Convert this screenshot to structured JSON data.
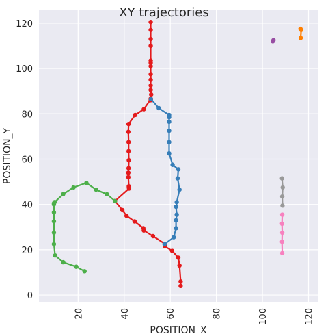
{
  "chart_data": {
    "type": "line",
    "title": "XY trajectories",
    "xlabel": "POSITION_X",
    "ylabel": "POSITION_Y",
    "xlim": [
      3,
      124
    ],
    "ylim": [
      -3,
      126
    ],
    "x_ticks": [
      20,
      40,
      60,
      80,
      100,
      120
    ],
    "y_ticks": [
      0,
      20,
      40,
      60,
      80,
      100,
      120
    ],
    "grid": true,
    "legend": "none",
    "background": "#eaeaf2",
    "series": [
      {
        "color": "#e41a1c",
        "x": [
          51.5,
          51.5,
          51.5,
          51.5,
          51.5,
          51.5,
          51.5,
          51.5,
          51.5,
          51.5,
          51.5,
          51.7,
          51.5,
          51.5,
          51.5,
          51.5,
          51.6,
          48.5,
          44.8,
          41.9,
          41.8,
          41.9,
          41.9,
          42.0,
          41.9,
          41.8,
          41.8,
          42.0,
          42.0,
          42.1,
          36.0,
          39.2,
          41.0,
          44.5,
          48.3,
          48.5,
          52.5,
          57.8,
          57.7,
          60.8,
          63.5,
          64.0,
          64.5,
          64.5
        ],
        "y": [
          120.5,
          117.0,
          113.0,
          110.0,
          103.5,
          102.5,
          101.0,
          97.5,
          95.0,
          92.5,
          90.5,
          88.5,
          86.5,
          86.0,
          86.5,
          86.7,
          86.5,
          82.0,
          79.5,
          75.5,
          72.0,
          67.5,
          63.5,
          59.5,
          56.0,
          54.0,
          52.0,
          48.0,
          47.5,
          47.0,
          41.5,
          37.5,
          35.0,
          32.5,
          29.5,
          28.5,
          26.0,
          22.5,
          21.5,
          19.5,
          16.5,
          13.0,
          6.0,
          4.0
        ]
      },
      {
        "color": "#377eb8",
        "x": [
          51.6,
          55.0,
          59.5,
          59.5,
          59.5,
          59.5,
          59.5,
          59.5,
          61.0,
          63.5,
          63.2,
          64.0,
          62.8,
          62.5,
          62.8,
          62.5,
          62.5,
          61.5,
          57.5
        ],
        "y": [
          86.5,
          82.5,
          79.5,
          78.5,
          76.5,
          72.5,
          67.5,
          62.5,
          57.5,
          55.5,
          51.5,
          46.5,
          41.0,
          39.0,
          35.5,
          33.0,
          29.5,
          25.5,
          22.5
        ]
      },
      {
        "color": "#4daf4a",
        "x": [
          22.8,
          19.2,
          13.5,
          10.0,
          9.5,
          9.5,
          9.5,
          9.5,
          9.5,
          9.5,
          9.8,
          13.5,
          18.0,
          23.6,
          27.8,
          32.5,
          36.0
        ],
        "y": [
          10.5,
          12.5,
          14.5,
          17.5,
          22.5,
          27.5,
          32.5,
          36.5,
          40.0,
          40.5,
          41.0,
          44.5,
          47.5,
          49.5,
          46.5,
          44.5,
          41.5
        ]
      },
      {
        "color": "#984ea3",
        "x": [
          104.5,
          104.8
        ],
        "y": [
          112.0,
          112.5
        ]
      },
      {
        "color": "#ff7f00",
        "x": [
          116.5,
          116.8,
          116.6
        ],
        "y": [
          117.5,
          117.0,
          113.5
        ]
      },
      {
        "color": "#999999",
        "x": [
          108.5,
          108.8,
          108.6,
          108.7
        ],
        "y": [
          51.5,
          47.5,
          43.5,
          39.5
        ]
      },
      {
        "color": "#f781bf",
        "x": [
          108.6,
          108.5,
          108.6,
          108.5,
          108.6
        ],
        "y": [
          35.5,
          31.5,
          27.5,
          23.5,
          18.5
        ]
      }
    ]
  }
}
